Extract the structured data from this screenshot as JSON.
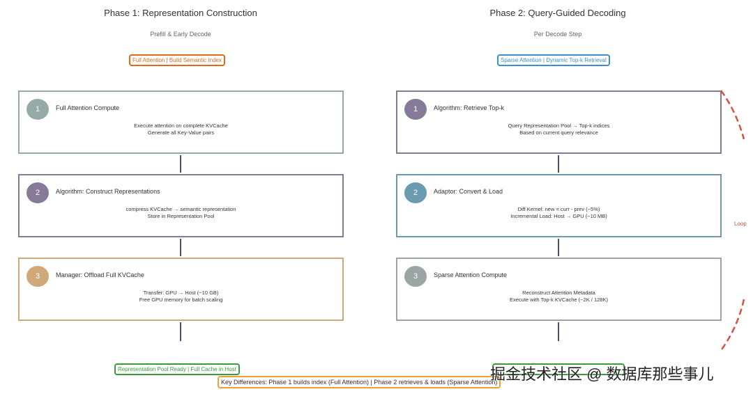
{
  "phase1": {
    "title": "Phase 1: Representation Construction",
    "subtitle": "Prefill & Early Decode",
    "tag": "Full Attention | Build Semantic Index",
    "tag_color": "#e06a1b",
    "steps": [
      {
        "num": "1",
        "title": "Full Attention Compute",
        "desc": "Execute attention on complete KVCache\nGenerate all Key-Value pairs",
        "color": "#95a9a6"
      },
      {
        "num": "2",
        "title": "Algorithm: Construct Representations",
        "desc": "compress KVCache → semantic representation\nStore in Representation Pool",
        "color": "#857a97"
      },
      {
        "num": "3",
        "title": "Manager: Offload Full KVCache",
        "desc": "Transfer: GPU → Host (~10 GB)\nFree GPU memory for batch scaling",
        "color": "#d0a87a"
      }
    ],
    "footer_tag": "Representation Pool Ready | Full Cache in Host"
  },
  "phase2": {
    "title": "Phase 2: Query-Guided Decoding",
    "subtitle": "Per Decode Step",
    "tag": "Sparse Attention | Dynamic Top-k Retrieval",
    "tag_color": "#3a8fd0",
    "steps": [
      {
        "num": "1",
        "title": "Algorithm: Retrieve Top-k",
        "desc": "Query Representation Pool → Top-k indices\nBased on current query relevance",
        "color": "#857a97"
      },
      {
        "num": "2",
        "title": "Adaptor: Convert & Load",
        "desc": "Diff Kernel: new = curr - prev (~5%)\nIncremental Load: Host → GPU (~10 MB)",
        "color": "#6a9bb0"
      },
      {
        "num": "3",
        "title": "Sparse Attention Compute",
        "desc": "Reconstruct Attention Metadata\nExecute with Top-k KVCache (~2K / 128K)",
        "color": "#9aa5a4"
      }
    ],
    "loop_label": "Loop"
  },
  "key_differences": "Key Differences:  Phase 1 builds index (Full Attention)  |  Phase 2 retrieves & loads (Sparse Attention)",
  "watermark": "掘金技术社区 @ 数据库那些事儿"
}
